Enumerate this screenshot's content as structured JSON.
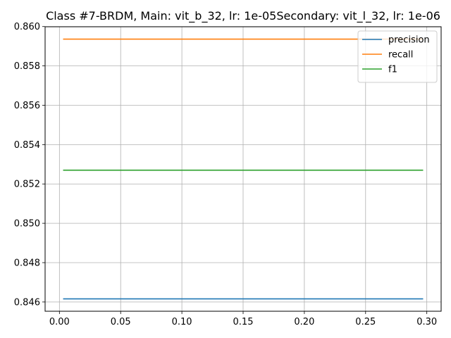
{
  "chart_data": {
    "type": "line",
    "title": "Class #7-BRDM, Main: vit_b_32, lr: 1e-05Secondary: vit_l_32, lr: 1e-06",
    "xlabel": "",
    "ylabel": "",
    "xlim": [
      -0.0117,
      0.3117
    ],
    "ylim": [
      0.84553,
      0.85999
    ],
    "x_ticks": [
      0.0,
      0.05,
      0.1,
      0.15,
      0.2,
      0.25,
      0.3
    ],
    "x_tick_labels": [
      "0.00",
      "0.05",
      "0.10",
      "0.15",
      "0.20",
      "0.25",
      "0.30"
    ],
    "y_ticks": [
      0.846,
      0.848,
      0.85,
      0.852,
      0.854,
      0.856,
      0.858,
      0.86
    ],
    "y_tick_labels": [
      "0.846",
      "0.848",
      "0.850",
      "0.852",
      "0.854",
      "0.856",
      "0.858",
      "0.860"
    ],
    "grid": true,
    "legend_position": "top-right",
    "series": [
      {
        "name": "precision",
        "color": "#1f77b4",
        "x": [
          0.003,
          0.297
        ],
        "y": [
          0.84616,
          0.84616
        ]
      },
      {
        "name": "recall",
        "color": "#ff7f0e",
        "x": [
          0.003,
          0.297
        ],
        "y": [
          0.85936,
          0.85936
        ]
      },
      {
        "name": "f1",
        "color": "#2ca02c",
        "x": [
          0.003,
          0.297
        ],
        "y": [
          0.8527,
          0.8527
        ]
      }
    ]
  }
}
